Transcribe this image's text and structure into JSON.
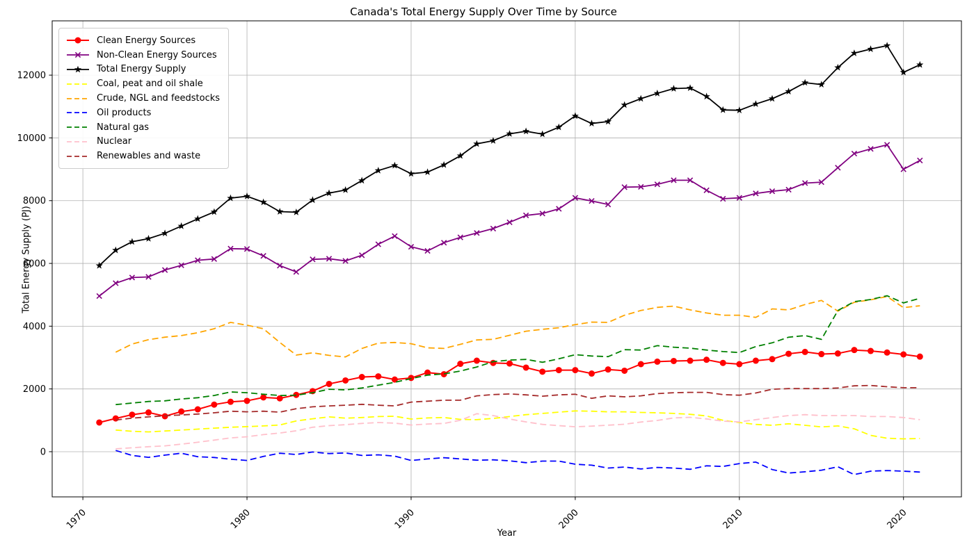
{
  "title": "Canada's Total Energy Supply Over Time by Source",
  "chart_data": {
    "type": "line",
    "title": "Canada's Total Energy Supply Over Time by Source",
    "xlabel": "Year",
    "ylabel": "Total Energy Supply (PJ)",
    "x_ticks": [
      1970,
      1980,
      1990,
      2000,
      2010,
      2020
    ],
    "y_ticks": [
      0,
      2000,
      4000,
      6000,
      8000,
      10000,
      12000
    ],
    "xlim": [
      1968.13,
      2023.53
    ],
    "ylim": [
      -1440,
      13730
    ],
    "grid": true,
    "grid_color": "#b0b0b0",
    "legend_position": "upper left",
    "series": [
      {
        "name": "Clean Energy Sources",
        "color": "#ff0000",
        "style": "solid",
        "marker": "circle",
        "line_width": 2,
        "start_year": 1971,
        "values": [
          930,
          1060,
          1180,
          1250,
          1130,
          1280,
          1350,
          1500,
          1590,
          1620,
          1730,
          1700,
          1810,
          1930,
          2160,
          2270,
          2380,
          2400,
          2300,
          2350,
          2520,
          2470,
          2800,
          2900,
          2830,
          2810,
          2680,
          2550,
          2600,
          2600,
          2490,
          2620,
          2580,
          2790,
          2870,
          2890,
          2900,
          2930,
          2830,
          2790,
          2900,
          2950,
          3120,
          3180,
          3110,
          3130,
          3240,
          3210,
          3160,
          3100,
          3030
        ]
      },
      {
        "name": "Non-Clean Energy Sources",
        "color": "#800080",
        "style": "solid",
        "marker": "x",
        "line_width": 1.8,
        "start_year": 1971,
        "values": [
          4960,
          5370,
          5550,
          5570,
          5790,
          5940,
          6100,
          6140,
          6470,
          6460,
          6240,
          5930,
          5730,
          6130,
          6150,
          6080,
          6260,
          6610,
          6870,
          6530,
          6400,
          6660,
          6830,
          6970,
          7110,
          7310,
          7530,
          7590,
          7740,
          8090,
          7990,
          7880,
          8430,
          8440,
          8520,
          8650,
          8650,
          8330,
          8060,
          8090,
          8230,
          8300,
          8350,
          8560,
          8590,
          9050,
          9500,
          9650,
          9780,
          9000,
          9280
        ]
      },
      {
        "name": "Total Energy Supply",
        "color": "#000000",
        "style": "solid",
        "marker": "star",
        "line_width": 1.8,
        "start_year": 1971,
        "values": [
          5930,
          6420,
          6690,
          6790,
          6960,
          7190,
          7420,
          7640,
          8080,
          8140,
          7950,
          7650,
          7630,
          8020,
          8240,
          8340,
          8640,
          8960,
          9120,
          8860,
          8910,
          9140,
          9430,
          9810,
          9910,
          10130,
          10210,
          10120,
          10340,
          10700,
          10460,
          10520,
          11050,
          11250,
          11420,
          11570,
          11590,
          11320,
          10890,
          10880,
          11080,
          11250,
          11480,
          11760,
          11700,
          12240,
          12700,
          12830,
          12940,
          12090,
          12330
        ]
      },
      {
        "name": "Coal, peat and oil shale",
        "color": "#ffff00",
        "style": "dashed",
        "marker": "none",
        "line_width": 1.8,
        "start_year": 1972,
        "values": [
          690,
          650,
          630,
          660,
          690,
          720,
          750,
          780,
          800,
          820,
          850,
          980,
          1050,
          1110,
          1070,
          1090,
          1120,
          1130,
          1040,
          1075,
          1090,
          1030,
          1020,
          1060,
          1120,
          1180,
          1220,
          1260,
          1300,
          1290,
          1270,
          1270,
          1250,
          1240,
          1220,
          1190,
          1140,
          1000,
          930,
          870,
          840,
          890,
          840,
          790,
          820,
          730,
          520,
          430,
          410,
          420
        ]
      },
      {
        "name": "Crude, NGL and feedstocks",
        "color": "#ffa500",
        "style": "dashed",
        "marker": "none",
        "line_width": 1.8,
        "start_year": 1972,
        "values": [
          3170,
          3430,
          3570,
          3650,
          3700,
          3790,
          3920,
          4120,
          4030,
          3920,
          3480,
          3080,
          3150,
          3070,
          3020,
          3290,
          3460,
          3480,
          3440,
          3310,
          3290,
          3420,
          3560,
          3580,
          3710,
          3840,
          3900,
          3950,
          4050,
          4130,
          4120,
          4350,
          4500,
          4600,
          4640,
          4520,
          4420,
          4350,
          4350,
          4280,
          4550,
          4520,
          4690,
          4820,
          4480,
          4760,
          4840,
          4945,
          4590,
          4650
        ]
      },
      {
        "name": "Oil products",
        "color": "#0000ff",
        "style": "dashed",
        "marker": "none",
        "line_width": 1.8,
        "start_year": 1972,
        "values": [
          40,
          -120,
          -180,
          -110,
          -50,
          -160,
          -185,
          -240,
          -280,
          -150,
          -50,
          -90,
          -10,
          -60,
          -40,
          -120,
          -100,
          -140,
          -280,
          -230,
          -190,
          -230,
          -270,
          -260,
          -290,
          -350,
          -300,
          -300,
          -400,
          -430,
          -520,
          -490,
          -550,
          -500,
          -520,
          -560,
          -450,
          -470,
          -380,
          -330,
          -570,
          -680,
          -640,
          -590,
          -480,
          -730,
          -620,
          -600,
          -620,
          -650
        ]
      },
      {
        "name": "Natural gas",
        "color": "#008000",
        "style": "dashed",
        "marker": "none",
        "line_width": 1.8,
        "start_year": 1972,
        "values": [
          1500,
          1550,
          1600,
          1620,
          1680,
          1720,
          1790,
          1905,
          1880,
          1830,
          1790,
          1800,
          1880,
          1990,
          1970,
          2030,
          2120,
          2210,
          2330,
          2440,
          2480,
          2570,
          2700,
          2870,
          2920,
          2940,
          2850,
          2960,
          3090,
          3050,
          3030,
          3250,
          3240,
          3380,
          3330,
          3300,
          3240,
          3190,
          3160,
          3350,
          3470,
          3650,
          3700,
          3580,
          4500,
          4780,
          4850,
          4970,
          4740,
          4890
        ]
      },
      {
        "name": "Nuclear",
        "color": "#ffc0cb",
        "style": "dashed",
        "marker": "none",
        "line_width": 1.8,
        "start_year": 1972,
        "values": [
          90,
          125,
          160,
          185,
          240,
          300,
          370,
          440,
          475,
          545,
          595,
          665,
          780,
          830,
          860,
          900,
          930,
          910,
          850,
          880,
          900,
          1000,
          1210,
          1150,
          1040,
          950,
          870,
          830,
          795,
          815,
          845,
          875,
          945,
          995,
          1075,
          1095,
          1045,
          975,
          950,
          1020,
          1090,
          1150,
          1180,
          1150,
          1150,
          1150,
          1120,
          1120,
          1090,
          1020
        ]
      },
      {
        "name": "Renewables and waste",
        "color": "#a52a2a",
        "style": "dashed",
        "marker": "none",
        "line_width": 1.8,
        "start_year": 1972,
        "values": [
          1010,
          1070,
          1110,
          1145,
          1170,
          1200,
          1240,
          1290,
          1270,
          1290,
          1260,
          1370,
          1430,
          1460,
          1480,
          1510,
          1480,
          1460,
          1580,
          1610,
          1640,
          1640,
          1780,
          1820,
          1840,
          1810,
          1770,
          1810,
          1830,
          1700,
          1780,
          1750,
          1780,
          1850,
          1880,
          1890,
          1890,
          1820,
          1800,
          1870,
          1990,
          2010,
          2010,
          2010,
          2030,
          2100,
          2110,
          2070,
          2040,
          2040
        ]
      }
    ]
  }
}
